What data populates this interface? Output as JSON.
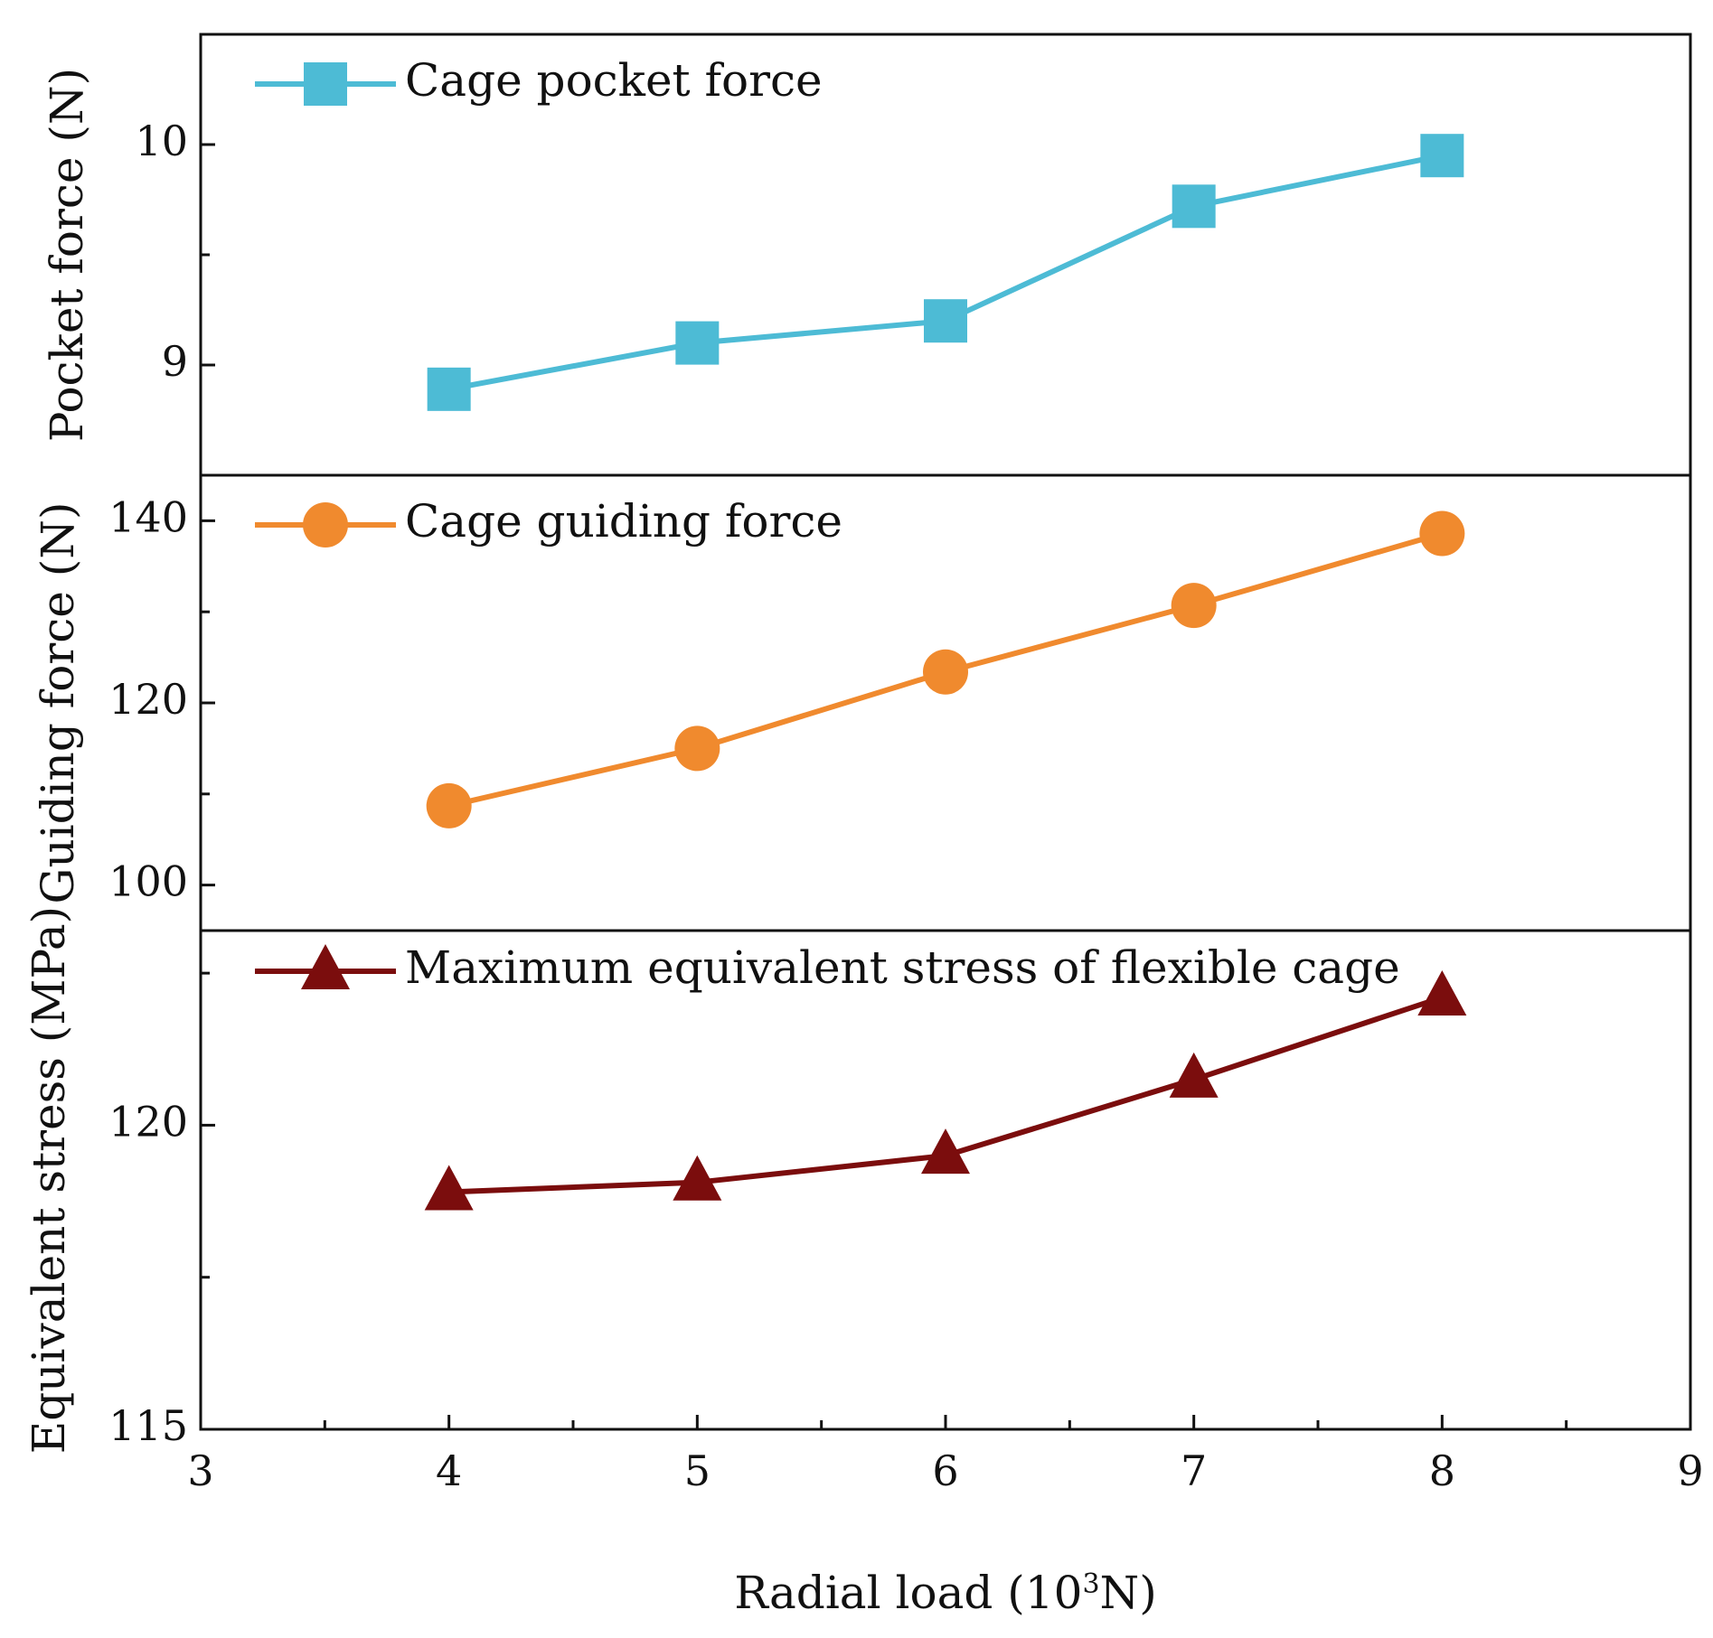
{
  "chart_data": {
    "type": "line",
    "x_axis": {
      "label": "Radial load (10",
      "label_sup": "3",
      "label_end": "N)",
      "range": [
        3,
        9
      ],
      "ticks": [
        3,
        4,
        5,
        6,
        7,
        8,
        9
      ],
      "minor_ticks": [
        3.5,
        4.5,
        5.5,
        6.5,
        7.5,
        8.5
      ]
    },
    "panels": [
      {
        "ylabel": "Pocket force (N)",
        "ylim": [
          8.5,
          10.5
        ],
        "yticks": [
          9,
          10
        ],
        "minor_yticks": [
          9.5
        ],
        "series": [
          {
            "name": "Cage pocket force",
            "color": "#4DBBD5",
            "marker": "square",
            "x": [
              4,
              5,
              6,
              7,
              8
            ],
            "y": [
              8.89,
              9.1,
              9.2,
              9.72,
              9.95
            ]
          }
        ]
      },
      {
        "ylabel": "Guiding force (N)",
        "ylim": [
          95,
          145
        ],
        "yticks": [
          100,
          120,
          140
        ],
        "minor_yticks": [
          110,
          130
        ],
        "series": [
          {
            "name": "Cage guiding force",
            "color": "#F08A2E",
            "marker": "circle",
            "x": [
              4,
              5,
              6,
              7,
              8
            ],
            "y": [
              108.7,
              115.0,
              123.4,
              130.7,
              138.6
            ]
          }
        ]
      },
      {
        "ylabel": "Equivalent stress (MPa)",
        "ylim": [
          115,
          123.2
        ],
        "yticks": [
          115,
          120
        ],
        "minor_yticks": [
          117.5,
          122.5
        ],
        "series": [
          {
            "name": "Maximum equivalent stress of flexible cage",
            "color": "#7B0D0D",
            "marker": "triangle",
            "x": [
              4,
              5,
              6,
              7,
              8
            ],
            "y": [
              118.9,
              119.06,
              119.5,
              120.75,
              122.1
            ]
          }
        ]
      }
    ]
  }
}
